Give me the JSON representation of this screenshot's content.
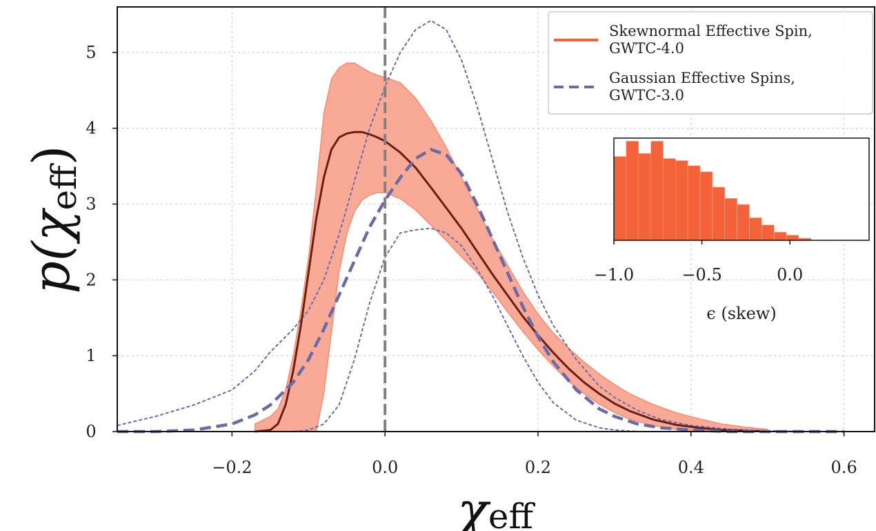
{
  "chart_data": [
    {
      "type": "line",
      "xlabel": "χ",
      "xlabel_sub": "eff",
      "ylabel": "p(χ",
      "ylabel_sub": "eff",
      "ylabel_close": ")",
      "xlim": [
        -0.35,
        0.64
      ],
      "ylim": [
        0,
        5.6
      ],
      "xticks": [
        -0.2,
        0.0,
        0.2,
        0.4,
        0.6
      ],
      "xtick_labels": [
        "−0.2",
        "0.0",
        "0.2",
        "0.4",
        "0.6"
      ],
      "yticks": [
        0,
        1,
        2,
        3,
        4,
        5
      ],
      "ytick_labels": [
        "0",
        "1",
        "2",
        "3",
        "4",
        "5"
      ],
      "grid": true,
      "vline_x": 0.0,
      "legend_position": "top-right",
      "colors": {
        "skewnormal": "#f4623a",
        "skewnormal_band": "#f8a591",
        "skewnormal_median": "#6b1d12",
        "gaussian": "#6a6aa8",
        "vline": "#808080"
      },
      "series": [
        {
          "name": "Skewnormal Effective Spin,\nGWTC-4.0",
          "legend_lines": [
            "Skewnormal Effective Spin,",
            "GWTC-4.0"
          ],
          "style": "median-with-band",
          "x": [
            -0.17,
            -0.15,
            -0.14,
            -0.13,
            -0.12,
            -0.11,
            -0.1,
            -0.09,
            -0.08,
            -0.07,
            -0.06,
            -0.05,
            -0.04,
            -0.03,
            -0.02,
            -0.01,
            0.0,
            0.02,
            0.04,
            0.06,
            0.08,
            0.1,
            0.12,
            0.14,
            0.16,
            0.18,
            0.2,
            0.22,
            0.24,
            0.26,
            0.28,
            0.3,
            0.32,
            0.35,
            0.38,
            0.41,
            0.44,
            0.47,
            0.5
          ],
          "median": [
            0.0,
            0.02,
            0.1,
            0.35,
            0.8,
            1.4,
            2.1,
            2.8,
            3.35,
            3.72,
            3.88,
            3.93,
            3.95,
            3.95,
            3.92,
            3.88,
            3.83,
            3.68,
            3.48,
            3.22,
            2.95,
            2.68,
            2.38,
            2.08,
            1.8,
            1.52,
            1.27,
            1.04,
            0.83,
            0.65,
            0.5,
            0.37,
            0.27,
            0.16,
            0.09,
            0.05,
            0.02,
            0.01,
            0.0
          ],
          "upper": [
            0.1,
            0.2,
            0.3,
            0.55,
            1.0,
            1.6,
            2.3,
            3.2,
            4.2,
            4.65,
            4.8,
            4.86,
            4.86,
            4.8,
            4.74,
            4.7,
            4.67,
            4.6,
            4.4,
            4.1,
            3.75,
            3.35,
            2.95,
            2.55,
            2.2,
            1.85,
            1.55,
            1.3,
            1.1,
            0.92,
            0.76,
            0.62,
            0.5,
            0.36,
            0.25,
            0.17,
            0.1,
            0.06,
            0.03
          ],
          "lower": [
            0.0,
            0.0,
            0.0,
            0.0,
            0.0,
            0.0,
            0.0,
            0.0,
            0.5,
            1.3,
            2.1,
            2.6,
            2.9,
            3.05,
            3.12,
            3.15,
            3.15,
            3.07,
            2.92,
            2.72,
            2.52,
            2.3,
            2.1,
            1.85,
            1.58,
            1.32,
            1.08,
            0.86,
            0.66,
            0.5,
            0.36,
            0.25,
            0.16,
            0.08,
            0.03,
            0.01,
            0.0,
            0.0,
            0.0
          ]
        },
        {
          "name": "Gaussian Effective Spins,\nGWTC-3.0",
          "legend_lines": [
            "Gaussian Effective Spins,",
            "GWTC-3.0"
          ],
          "style": "dashed-median-with-dashed-bounds",
          "x": [
            -0.35,
            -0.3,
            -0.25,
            -0.2,
            -0.17,
            -0.15,
            -0.12,
            -0.1,
            -0.08,
            -0.06,
            -0.04,
            -0.02,
            0.0,
            0.02,
            0.04,
            0.06,
            0.08,
            0.1,
            0.12,
            0.14,
            0.16,
            0.18,
            0.2,
            0.22,
            0.25,
            0.28,
            0.3,
            0.33,
            0.36,
            0.4,
            0.45,
            0.5,
            0.55,
            0.6
          ],
          "median": [
            0.0,
            0.0,
            0.02,
            0.1,
            0.22,
            0.35,
            0.65,
            0.95,
            1.35,
            1.8,
            2.25,
            2.7,
            3.05,
            3.35,
            3.6,
            3.72,
            3.65,
            3.4,
            3.0,
            2.55,
            2.1,
            1.65,
            1.25,
            0.92,
            0.55,
            0.3,
            0.2,
            0.1,
            0.05,
            0.02,
            0.0,
            0.0,
            0.0,
            0.0
          ],
          "upper": [
            0.08,
            0.2,
            0.35,
            0.55,
            0.8,
            1.05,
            1.35,
            1.6,
            2.0,
            2.6,
            3.3,
            4.0,
            4.55,
            5.0,
            5.3,
            5.42,
            5.3,
            4.9,
            4.3,
            3.6,
            2.9,
            2.3,
            1.8,
            1.4,
            0.95,
            0.6,
            0.45,
            0.28,
            0.16,
            0.08,
            0.03,
            0.01,
            0.0,
            0.0
          ],
          "lower": [
            0.0,
            0.0,
            0.0,
            0.0,
            0.0,
            0.0,
            0.0,
            0.02,
            0.1,
            0.35,
            0.95,
            1.7,
            2.3,
            2.62,
            2.66,
            2.68,
            2.62,
            2.45,
            2.15,
            1.8,
            1.4,
            1.0,
            0.65,
            0.38,
            0.15,
            0.05,
            0.02,
            0.0,
            0.0,
            0.0,
            0.0,
            0.0,
            0.0,
            0.0
          ]
        }
      ]
    },
    {
      "type": "bar",
      "subtype": "histogram",
      "xlabel": "ϵ (skew)",
      "xlim": [
        -1.0,
        0.45
      ],
      "xticks": [
        -1.0,
        -0.5,
        0.0
      ],
      "xtick_labels": [
        "−1.0",
        "−0.5",
        "0.0"
      ],
      "color": "#f4623a",
      "bin_edges": [
        -1.0,
        -0.93,
        -0.86,
        -0.79,
        -0.72,
        -0.65,
        -0.58,
        -0.51,
        -0.44,
        -0.37,
        -0.3,
        -0.23,
        -0.16,
        -0.09,
        -0.02,
        0.05,
        0.12
      ],
      "values": [
        0.82,
        0.97,
        0.85,
        0.97,
        0.8,
        0.78,
        0.73,
        0.67,
        0.52,
        0.41,
        0.35,
        0.22,
        0.15,
        0.08,
        0.05,
        0.02
      ]
    }
  ]
}
